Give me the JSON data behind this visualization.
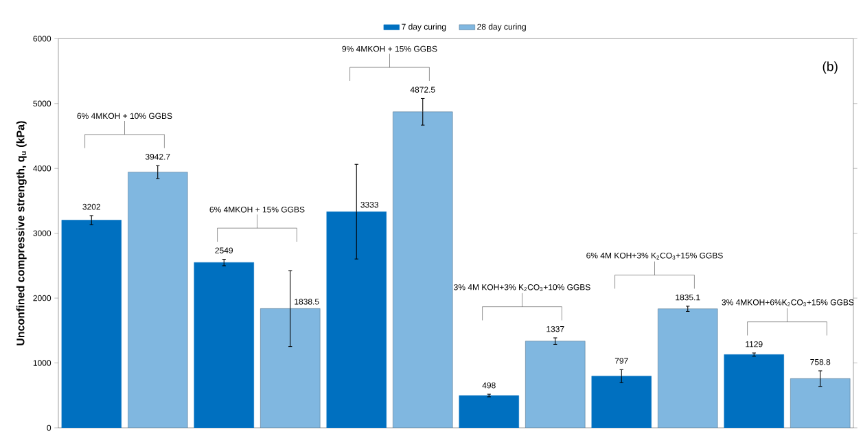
{
  "chart_data": {
    "type": "bar",
    "categories": [
      null,
      null,
      null,
      null,
      null,
      null
    ],
    "series": [
      {
        "name": "7 day curing",
        "color": "#0070c0",
        "values": [
          3202,
          2549,
          3333,
          498,
          797,
          1129
        ],
        "errors": [
          70,
          50,
          730,
          20,
          100,
          25
        ]
      },
      {
        "name": "28 day curing",
        "color": "#80b7e0",
        "values": [
          3942.7,
          1838.5,
          4872.5,
          1337,
          1835.1,
          758.8
        ],
        "errors": [
          100,
          585,
          205,
          50,
          40,
          120
        ]
      }
    ],
    "ylabel": "Unconfined compressive strength, q$_{u}$ (kPa)",
    "ylim": [
      0,
      6000
    ],
    "yticks": [
      0,
      1000,
      2000,
      3000,
      4000,
      5000,
      6000
    ],
    "data_labels": true,
    "legend": "top",
    "grid": false,
    "annotations": [
      "6% 4MKOH + 10% GGBS",
      "6% 4MKOH + 15% GGBS",
      "9% 4MKOH + 15% GGBS",
      "3% 4M KOH+3% K$_{2}$CO$_{3}$+10% GGBS",
      "6% 4M KOH+3% K$_{2}$CO$_{3}$+15% GGBS",
      "3% 4MKOH+6%K$_{2}$CO$_{3}$+15% GGBS",
      "(b)"
    ]
  }
}
